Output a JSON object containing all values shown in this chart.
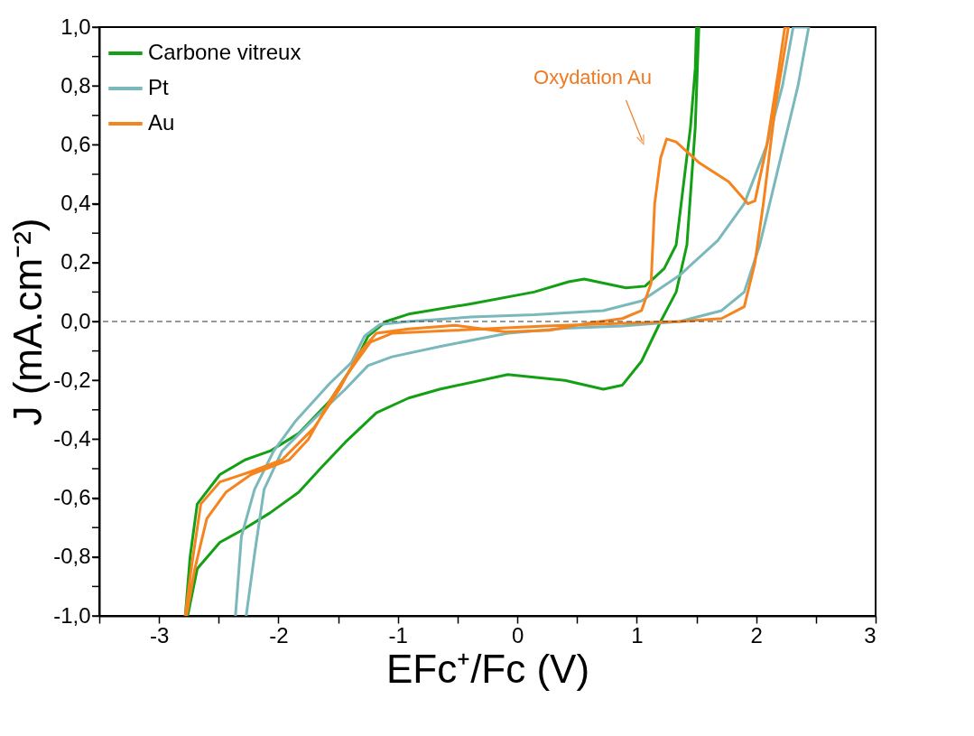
{
  "chart_data": {
    "type": "line",
    "xlabel": "EFc⁺/Fc (V)",
    "ylabel": "J (mA.cm⁻²)",
    "xlim": [
      -3.5,
      3
    ],
    "ylim": [
      -1.0,
      1.0
    ],
    "xticks": [
      {
        "value": -3.5,
        "label": null
      },
      -3,
      {
        "value": -2.5,
        "label": null
      },
      -2,
      {
        "value": -1.5,
        "label": null
      },
      -1,
      {
        "value": -0.5,
        "label": null
      },
      0,
      {
        "value": 0.5,
        "label": null
      },
      1,
      {
        "value": 1.5,
        "label": null
      },
      2,
      {
        "value": 2.5,
        "label": null
      },
      3
    ],
    "yticks": [
      {
        "value": -1.0,
        "label": "-1,0"
      },
      {
        "value": -0.9,
        "label": null
      },
      {
        "value": -0.8,
        "label": "-0,8"
      },
      {
        "value": -0.7,
        "label": null
      },
      {
        "value": -0.6,
        "label": "-0,6"
      },
      {
        "value": -0.5,
        "label": null
      },
      {
        "value": -0.4,
        "label": "-0,4"
      },
      {
        "value": -0.3,
        "label": null
      },
      {
        "value": -0.2,
        "label": "-0,2"
      },
      {
        "value": -0.1,
        "label": null
      },
      {
        "value": 0.0,
        "label": "0,0"
      },
      {
        "value": 0.1,
        "label": null
      },
      {
        "value": 0.2,
        "label": "0,2"
      },
      {
        "value": 0.3,
        "label": null
      },
      {
        "value": 0.4,
        "label": "0,4"
      },
      {
        "value": 0.5,
        "label": null
      },
      {
        "value": 0.6,
        "label": "0,6"
      },
      {
        "value": 0.7,
        "label": null
      },
      {
        "value": 0.8,
        "label": "0,8"
      },
      {
        "value": 0.9,
        "label": null
      },
      {
        "value": 1.0,
        "label": "1,0"
      }
    ],
    "grid": false,
    "legend": "top left",
    "line_style": "solid",
    "ref_lines": [
      {
        "axis": "y",
        "value": 0,
        "color": "#333333",
        "line_style": "dashed"
      }
    ],
    "annotations": [
      {
        "text": "Oxydation Au",
        "x": 1.25,
        "y": 0.62
      }
    ],
    "series": [
      {
        "name": "Carbone vitreux",
        "color": "#14a014",
        "x": [
          -2.78,
          -2.74,
          -2.68,
          -2.49,
          -2.28,
          -2.07,
          -1.83,
          -1.57,
          -1.36,
          -1.25,
          -1.1,
          -0.91,
          -0.39,
          0.14,
          0.43,
          0.56,
          0.91,
          1.07,
          1.23,
          1.33,
          1.39,
          1.45,
          1.49,
          1.5,
          1.52,
          1.49,
          1.42,
          1.33,
          1.2,
          1.04,
          0.88,
          0.72,
          0.4,
          -0.08,
          -0.65,
          -0.91,
          -1.18,
          -1.44,
          -1.65,
          -1.83,
          -2.07,
          -2.31,
          -2.49,
          -2.68,
          -2.76
        ],
        "values": [
          -1.0,
          -0.8,
          -0.62,
          -0.52,
          -0.47,
          -0.44,
          -0.38,
          -0.27,
          -0.14,
          -0.05,
          0.0,
          0.025,
          0.06,
          0.1,
          0.135,
          0.144,
          0.114,
          0.12,
          0.18,
          0.26,
          0.46,
          0.66,
          0.86,
          1.0,
          1.0,
          0.66,
          0.26,
          0.1,
          0.0,
          -0.135,
          -0.216,
          -0.23,
          -0.2,
          -0.18,
          -0.23,
          -0.26,
          -0.31,
          -0.41,
          -0.5,
          -0.58,
          -0.65,
          -0.71,
          -0.75,
          -0.84,
          -1.0
        ]
      },
      {
        "name": "Pt",
        "color": "#7ab8bc",
        "x": [
          -2.36,
          -2.31,
          -2.2,
          -2.04,
          -1.86,
          -1.57,
          -1.39,
          -1.28,
          -1.15,
          -0.91,
          -0.39,
          0.14,
          0.72,
          1.04,
          1.36,
          1.68,
          1.9,
          2.09,
          2.22,
          2.31,
          2.44,
          2.35,
          2.19,
          2.03,
          1.9,
          1.71,
          1.36,
          0.88,
          0.4,
          -0.08,
          -0.65,
          -1.05,
          -1.25,
          -1.44,
          -1.7,
          -1.97,
          -2.12,
          -2.2,
          -2.27
        ],
        "values": [
          -1.0,
          -0.73,
          -0.57,
          -0.44,
          -0.34,
          -0.21,
          -0.14,
          -0.05,
          -0.01,
          0.0,
          0.015,
          0.023,
          0.037,
          0.07,
          0.157,
          0.276,
          0.4,
          0.6,
          0.8,
          1.0,
          1.0,
          0.8,
          0.53,
          0.26,
          0.1,
          0.037,
          0.0,
          -0.015,
          -0.023,
          -0.04,
          -0.085,
          -0.12,
          -0.15,
          -0.23,
          -0.33,
          -0.44,
          -0.57,
          -0.79,
          -1.0
        ]
      },
      {
        "name": "Au",
        "color": "#f5841f",
        "x": [
          -2.78,
          -2.73,
          -2.65,
          -2.49,
          -2.23,
          -1.97,
          -1.7,
          -1.49,
          -1.33,
          -1.18,
          -0.91,
          -0.52,
          -0.1,
          0.27,
          0.6,
          0.88,
          1.04,
          1.12,
          1.15,
          1.2,
          1.25,
          1.33,
          1.52,
          1.77,
          1.93,
          1.99,
          2.09,
          2.19,
          2.24,
          2.27,
          2.16,
          2.06,
          1.99,
          1.9,
          1.71,
          1.36,
          0.88,
          0.24,
          -0.52,
          -1.05,
          -1.23,
          -1.39,
          -1.57,
          -1.75,
          -1.91,
          -2.23,
          -2.44,
          -2.6,
          -2.7,
          -2.77
        ],
        "values": [
          -1.0,
          -0.84,
          -0.62,
          -0.545,
          -0.51,
          -0.47,
          -0.36,
          -0.23,
          -0.11,
          -0.04,
          -0.025,
          -0.013,
          -0.035,
          -0.03,
          -0.005,
          0.01,
          0.037,
          0.13,
          0.4,
          0.555,
          0.62,
          0.61,
          0.54,
          0.475,
          0.4,
          0.41,
          0.6,
          0.86,
          1.0,
          1.0,
          0.73,
          0.4,
          0.2,
          0.05,
          0.01,
          0.0,
          -0.006,
          -0.015,
          -0.03,
          -0.04,
          -0.07,
          -0.16,
          -0.27,
          -0.4,
          -0.47,
          -0.52,
          -0.58,
          -0.67,
          -0.84,
          -1.0
        ]
      }
    ]
  }
}
